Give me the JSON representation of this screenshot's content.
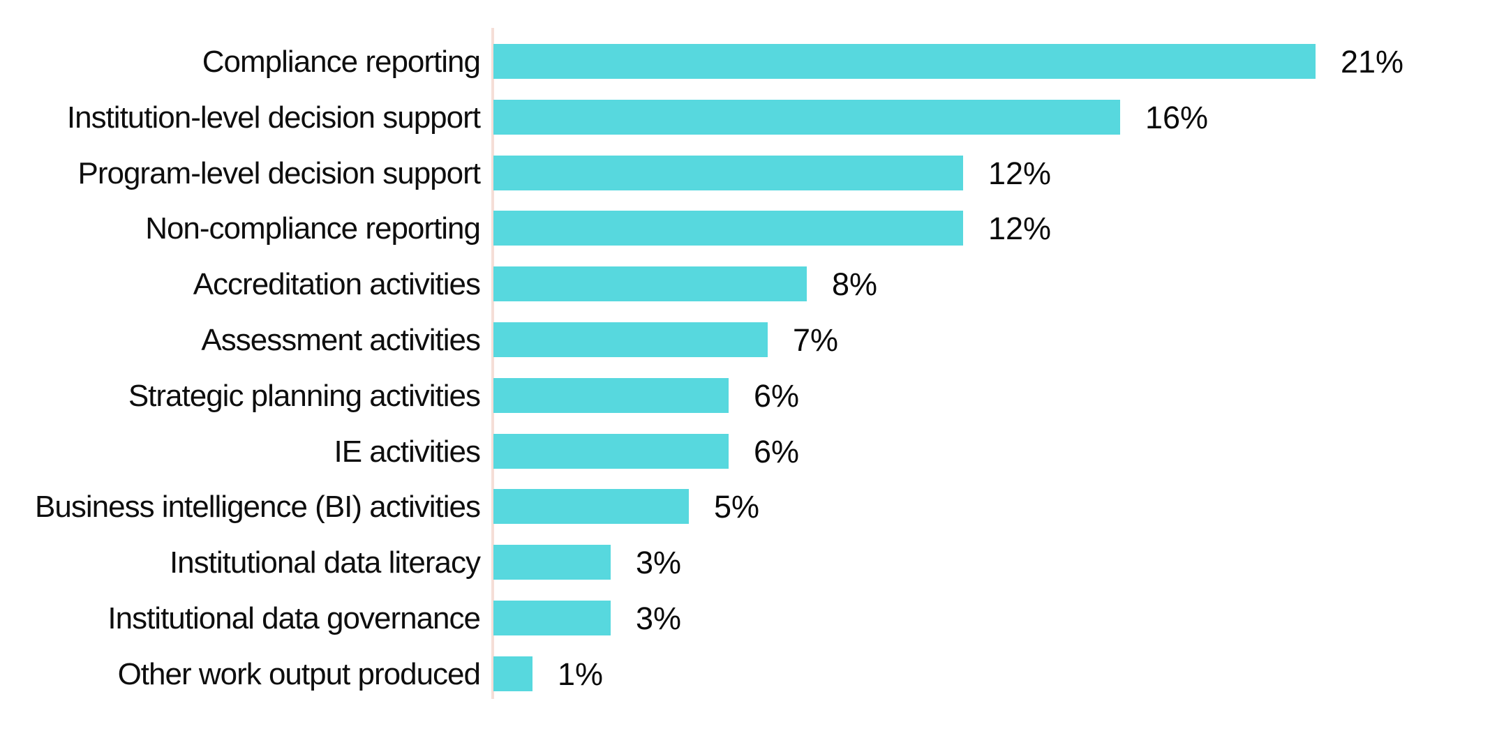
{
  "page": {
    "background_color": "#ffffff",
    "text_color": "#0e0e0e"
  },
  "chart_data": {
    "type": "bar",
    "orientation": "horizontal",
    "title": "",
    "xlabel": "",
    "ylabel": "",
    "categories": [
      "Compliance reporting",
      "Institution-level decision support",
      "Program-level decision support",
      "Non-compliance reporting",
      "Accreditation activities",
      "Assessment activities",
      "Strategic planning activities",
      "IE activities",
      "Business intelligence (BI) activities",
      "Institutional data literacy",
      "Institutional data governance",
      "Other work output produced"
    ],
    "values": [
      21,
      16,
      12,
      12,
      8,
      7,
      6,
      6,
      5,
      3,
      3,
      1
    ],
    "labels": [
      "21%",
      "16%",
      "12%",
      "12%",
      "8%",
      "7%",
      "6%",
      "6%",
      "5%",
      "3%",
      "3%",
      "1%"
    ],
    "value_suffix": "%",
    "xlim": [
      0,
      21
    ],
    "grid": false,
    "legend": false,
    "bar_color": "#57D8DE",
    "axis_line_color": "#F5DED7",
    "label_color": "#0e0e0e"
  }
}
